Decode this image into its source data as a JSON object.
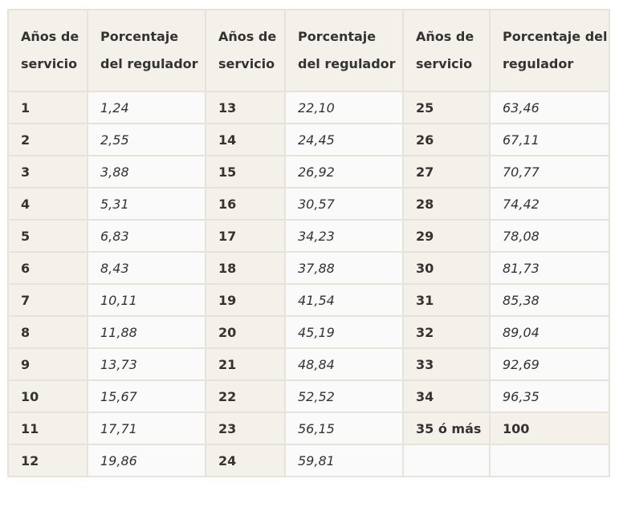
{
  "headers": {
    "years": "Años de servicio",
    "percent": "Porcentaje del regulador"
  },
  "rows": [
    [
      {
        "y": "1",
        "p": "1,24"
      },
      {
        "y": "13",
        "p": "22,10"
      },
      {
        "y": "25",
        "p": "63,46"
      }
    ],
    [
      {
        "y": "2",
        "p": "2,55"
      },
      {
        "y": "14",
        "p": "24,45"
      },
      {
        "y": "26",
        "p": "67,11"
      }
    ],
    [
      {
        "y": "3",
        "p": "3,88"
      },
      {
        "y": "15",
        "p": "26,92"
      },
      {
        "y": "27",
        "p": "70,77"
      }
    ],
    [
      {
        "y": "4",
        "p": "5,31"
      },
      {
        "y": "16",
        "p": "30,57"
      },
      {
        "y": "28",
        "p": "74,42"
      }
    ],
    [
      {
        "y": "5",
        "p": "6,83"
      },
      {
        "y": "17",
        "p": "34,23"
      },
      {
        "y": "29",
        "p": "78,08"
      }
    ],
    [
      {
        "y": "6",
        "p": "8,43"
      },
      {
        "y": "18",
        "p": "37,88"
      },
      {
        "y": "30",
        "p": "81,73"
      }
    ],
    [
      {
        "y": "7",
        "p": "10,11"
      },
      {
        "y": "19",
        "p": "41,54"
      },
      {
        "y": "31",
        "p": "85,38"
      }
    ],
    [
      {
        "y": "8",
        "p": "11,88"
      },
      {
        "y": "20",
        "p": "45,19"
      },
      {
        "y": "32",
        "p": "89,04"
      }
    ],
    [
      {
        "y": "9",
        "p": "13,73"
      },
      {
        "y": "21",
        "p": "48,84"
      },
      {
        "y": "33",
        "p": "92,69"
      }
    ],
    [
      {
        "y": "10",
        "p": "15,67"
      },
      {
        "y": "22",
        "p": "52,52"
      },
      {
        "y": "34",
        "p": "96,35"
      }
    ],
    [
      {
        "y": "11",
        "p": "17,71"
      },
      {
        "y": "23",
        "p": "56,15"
      },
      {
        "y": "35 ó más",
        "p": "100"
      }
    ],
    [
      {
        "y": "12",
        "p": "19,86"
      },
      {
        "y": "24",
        "p": "59,81"
      },
      {
        "y": "",
        "p": ""
      }
    ]
  ]
}
